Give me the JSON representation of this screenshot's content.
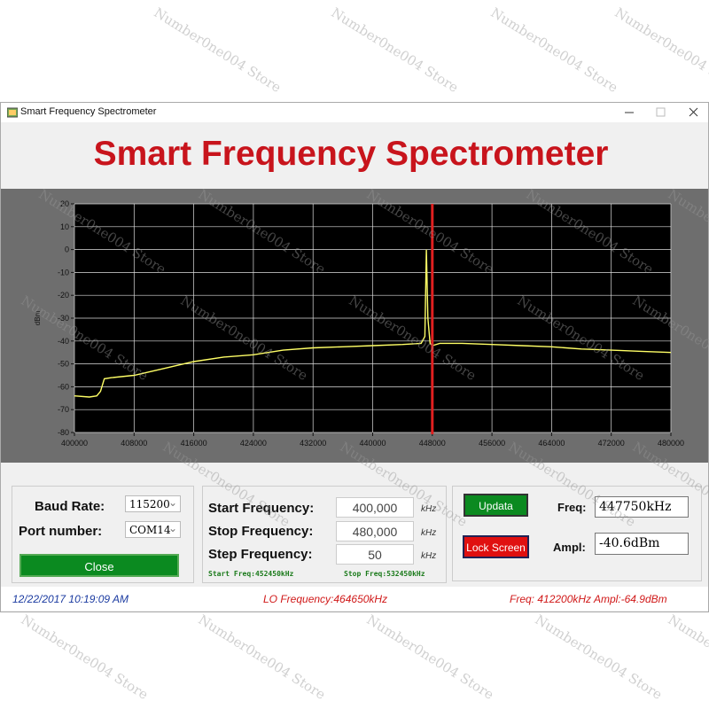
{
  "window": {
    "title": "Smart Frequency Spectrometer"
  },
  "header": {
    "title": "Smart Frequency Spectrometer"
  },
  "chart_data": {
    "type": "line",
    "y_label": "dBm",
    "x": [
      400000,
      402000,
      403000,
      403500,
      404000,
      405000,
      408000,
      412000,
      416000,
      420000,
      424000,
      428000,
      432000,
      436000,
      440000,
      444000,
      446500,
      447000,
      447200,
      447400,
      447700,
      448000,
      449000,
      452000,
      456000,
      460000,
      464000,
      468000,
      472000,
      476000,
      480000
    ],
    "series": [
      {
        "color": "#ffff66",
        "values": [
          -64,
          -64.5,
          -64,
          -62,
          -56.5,
          -56,
          -55,
          -52,
          -49,
          -47,
          -46,
          -44,
          -43,
          -42.5,
          -42,
          -41.5,
          -41,
          -38,
          0,
          -30,
          -41,
          -42,
          -41,
          -41,
          -41.5,
          -42,
          -42.5,
          -43.5,
          -44,
          -44.5,
          -45
        ]
      }
    ],
    "xlim": [
      400000,
      480000
    ],
    "xticks": [
      400000,
      408000,
      416000,
      424000,
      432000,
      440000,
      448000,
      456000,
      464000,
      472000,
      480000
    ],
    "ylim": [
      -80,
      20
    ],
    "yticks": [
      -80,
      -70,
      -60,
      -50,
      -40,
      -30,
      -20,
      -10,
      0,
      10,
      20
    ],
    "grid": true,
    "marker": {
      "x": 448000,
      "color": "#e02020"
    }
  },
  "controls": {
    "baud_label": "Baud Rate:",
    "baud_value": "115200",
    "port_label": "Port number:",
    "port_value": "COM14",
    "close_button": "Close",
    "start_label": "Start Frequency:",
    "start_value": "400,000",
    "start_unit": "kHz",
    "stop_label": "Stop Frequency:",
    "stop_value": "480,000",
    "stop_unit": "kHz",
    "step_label": "Step Frequency:",
    "step_value": "50",
    "step_unit": "kHz",
    "start_info": "Start Freq:452450kHz",
    "stop_info": "Stop Freq:532450kHz",
    "update_button": "Updata",
    "lock_button": "Lock Screen",
    "freq_label": "Freq:",
    "freq_value": "447750kHz",
    "ampl_label": "Ampl:",
    "ampl_value": "-40.6dBm"
  },
  "status": {
    "datetime": "12/22/2017 10:19:09 AM",
    "lo": "LO Frequency:464650kHz",
    "reading": "Freq: 412200kHz Ampl:-64.9dBm"
  },
  "watermark": "Number0ne004 Store"
}
